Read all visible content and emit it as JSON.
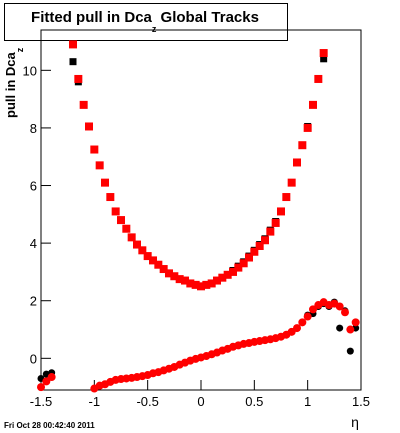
{
  "chart_data": {
    "type": "scatter",
    "title": "Fitted pull in Dca",
    "title_sub": "z",
    "title_end": " Global Tracks",
    "y_label": "pull in Dca",
    "y_label_sub": "z",
    "x_label": "η",
    "footer": "Fri Oct 28 00:42:40 2011",
    "xlim": [
      -1.5,
      1.5
    ],
    "ylim": [
      -1.1,
      11.4
    ],
    "xticks": [
      -1.5,
      -1,
      -0.5,
      0,
      0.5,
      1,
      1.5
    ],
    "yticks": [
      0,
      2,
      4,
      6,
      8,
      10
    ],
    "series": [
      {
        "color": "#000000",
        "marker": "square",
        "x": [
          -1.2,
          -1.15,
          -1.1,
          -1.05,
          -1.0,
          -0.95,
          -0.9,
          -0.85,
          -0.8,
          -0.75,
          -0.7,
          -0.65,
          -0.6,
          -0.55,
          -0.5,
          -0.45,
          -0.4,
          -0.35,
          -0.3,
          -0.25,
          -0.2,
          -0.15,
          -0.1,
          -0.05,
          0,
          0.05,
          0.1,
          0.15,
          0.2,
          0.25,
          0.3,
          0.35,
          0.4,
          0.45,
          0.5,
          0.55,
          0.6,
          0.65,
          0.7,
          0.75,
          0.8,
          0.85,
          0.9,
          0.95,
          1.0,
          1.05,
          1.1,
          1.15
        ],
        "values": [
          10.3,
          9.6,
          8.8,
          8.05,
          7.25,
          6.7,
          6.1,
          5.6,
          5.1,
          4.8,
          4.5,
          4.2,
          3.95,
          3.75,
          3.55,
          3.4,
          3.25,
          3.1,
          2.95,
          2.85,
          2.75,
          2.7,
          2.6,
          2.55,
          2.5,
          2.55,
          2.6,
          2.7,
          2.8,
          2.9,
          3.05,
          3.2,
          3.35,
          3.55,
          3.75,
          3.95,
          4.15,
          4.45,
          4.75,
          5.1,
          5.6,
          6.1,
          6.8,
          7.4,
          8.05,
          8.8,
          9.7,
          10.4
        ]
      },
      {
        "color": "#ff0000",
        "marker": "square",
        "x": [
          -1.2,
          -1.15,
          -1.1,
          -1.05,
          -1.0,
          -0.95,
          -0.9,
          -0.85,
          -0.8,
          -0.75,
          -0.7,
          -0.65,
          -0.6,
          -0.55,
          -0.5,
          -0.45,
          -0.4,
          -0.35,
          -0.3,
          -0.25,
          -0.2,
          -0.15,
          -0.1,
          -0.05,
          0,
          0.05,
          0.1,
          0.15,
          0.2,
          0.25,
          0.3,
          0.35,
          0.4,
          0.45,
          0.5,
          0.55,
          0.6,
          0.65,
          0.7,
          0.75,
          0.8,
          0.85,
          0.9,
          0.95,
          1.0,
          1.05,
          1.1,
          1.15
        ],
        "values": [
          10.9,
          9.7,
          8.8,
          8.05,
          7.25,
          6.7,
          6.1,
          5.6,
          5.1,
          4.8,
          4.5,
          4.2,
          3.95,
          3.75,
          3.55,
          3.4,
          3.25,
          3.1,
          2.95,
          2.85,
          2.75,
          2.7,
          2.6,
          2.55,
          2.5,
          2.55,
          2.6,
          2.7,
          2.8,
          2.9,
          3.0,
          3.15,
          3.3,
          3.5,
          3.7,
          3.9,
          4.1,
          4.4,
          4.7,
          5.1,
          5.6,
          6.1,
          6.8,
          7.4,
          8.0,
          8.8,
          9.7,
          10.6
        ]
      },
      {
        "color": "#000000",
        "marker": "circle",
        "x": [
          -1.5,
          -1.45,
          -1.4,
          -1.0,
          -0.95,
          -0.9,
          -0.85,
          -0.8,
          -0.75,
          -0.7,
          -0.65,
          -0.6,
          -0.55,
          -0.5,
          -0.45,
          -0.4,
          -0.35,
          -0.3,
          -0.25,
          -0.2,
          -0.15,
          -0.1,
          -0.05,
          0,
          0.05,
          0.1,
          0.15,
          0.2,
          0.25,
          0.3,
          0.35,
          0.4,
          0.45,
          0.5,
          0.55,
          0.6,
          0.65,
          0.7,
          0.75,
          0.8,
          0.85,
          0.9,
          0.95,
          1.0,
          1.05,
          1.1,
          1.15,
          1.2,
          1.25,
          1.3,
          1.35,
          1.4,
          1.45
        ],
        "values": [
          -0.7,
          -0.55,
          -0.5,
          -1.05,
          -0.95,
          -0.9,
          -0.82,
          -0.75,
          -0.72,
          -0.7,
          -0.68,
          -0.65,
          -0.62,
          -0.58,
          -0.52,
          -0.48,
          -0.42,
          -0.36,
          -0.3,
          -0.22,
          -0.15,
          -0.08,
          -0.02,
          0.03,
          0.08,
          0.14,
          0.2,
          0.27,
          0.33,
          0.4,
          0.45,
          0.5,
          0.53,
          0.57,
          0.6,
          0.63,
          0.66,
          0.7,
          0.75,
          0.82,
          0.92,
          1.05,
          1.25,
          1.5,
          1.55,
          1.8,
          1.9,
          1.8,
          1.95,
          1.05,
          1.65,
          0.25,
          1.05
        ]
      },
      {
        "color": "#ff0000",
        "marker": "circle",
        "x": [
          -1.5,
          -1.45,
          -1.4,
          -1.0,
          -0.95,
          -0.9,
          -0.85,
          -0.8,
          -0.75,
          -0.7,
          -0.65,
          -0.6,
          -0.55,
          -0.5,
          -0.45,
          -0.4,
          -0.35,
          -0.3,
          -0.25,
          -0.2,
          -0.15,
          -0.1,
          -0.05,
          0,
          0.05,
          0.1,
          0.15,
          0.2,
          0.25,
          0.3,
          0.35,
          0.4,
          0.45,
          0.5,
          0.55,
          0.6,
          0.65,
          0.7,
          0.75,
          0.8,
          0.85,
          0.9,
          0.95,
          1.0,
          1.05,
          1.1,
          1.15,
          1.2,
          1.25,
          1.3,
          1.35,
          1.4,
          1.45
        ],
        "values": [
          -1.0,
          -0.8,
          -0.65,
          -1.05,
          -0.95,
          -0.9,
          -0.82,
          -0.75,
          -0.72,
          -0.7,
          -0.68,
          -0.65,
          -0.62,
          -0.58,
          -0.52,
          -0.48,
          -0.42,
          -0.36,
          -0.3,
          -0.22,
          -0.15,
          -0.08,
          -0.02,
          0.03,
          0.08,
          0.14,
          0.2,
          0.27,
          0.33,
          0.4,
          0.45,
          0.5,
          0.53,
          0.57,
          0.6,
          0.63,
          0.66,
          0.7,
          0.75,
          0.82,
          0.92,
          1.05,
          1.25,
          1.45,
          1.7,
          1.85,
          1.95,
          1.85,
          1.9,
          1.8,
          1.6,
          1.0,
          1.25
        ]
      }
    ]
  }
}
